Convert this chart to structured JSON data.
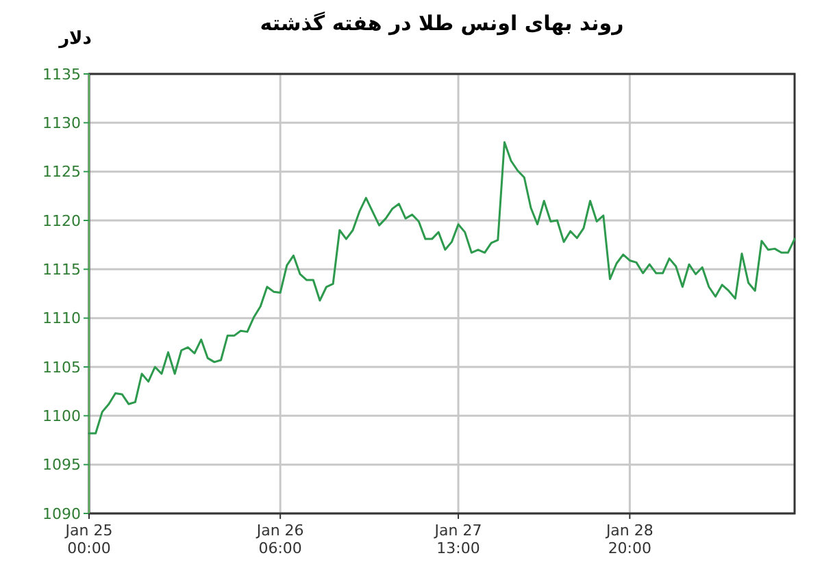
{
  "chart_data": {
    "type": "line",
    "title": "روند بهای اونس طلا در هفته گذشته",
    "ylabel": "دلار",
    "series": [
      {
        "color": "#2e9a4e",
        "values": [
          1098.2,
          1098.2,
          1100.4,
          1101.2,
          1102.3,
          1102.2,
          1101.2,
          1101.4,
          1104.3,
          1103.5,
          1105.0,
          1104.3,
          1106.5,
          1104.3,
          1106.7,
          1107.0,
          1106.4,
          1107.8,
          1105.9,
          1105.5,
          1105.7,
          1108.2,
          1108.2,
          1108.7,
          1108.6,
          1110.1,
          1111.2,
          1113.2,
          1112.7,
          1112.6,
          1115.4,
          1116.4,
          1114.5,
          1113.9,
          1113.9,
          1111.8,
          1113.2,
          1113.5,
          1119.0,
          1118.1,
          1119.0,
          1120.9,
          1122.3,
          1120.9,
          1119.5,
          1120.2,
          1121.2,
          1121.7,
          1120.2,
          1120.6,
          1119.9,
          1118.1,
          1118.1,
          1118.8,
          1117.0,
          1117.8,
          1119.6,
          1118.8,
          1116.7,
          1117.0,
          1116.7,
          1117.7,
          1118.0,
          1128.0,
          1126.1,
          1125.1,
          1124.4,
          1121.3,
          1119.6,
          1122.0,
          1119.9,
          1120.0,
          1117.8,
          1118.9,
          1118.2,
          1119.2,
          1122.0,
          1119.9,
          1120.5,
          1114.0,
          1115.6,
          1116.5,
          1115.9,
          1115.7,
          1114.6,
          1115.5,
          1114.6,
          1114.6,
          1116.1,
          1115.3,
          1113.2,
          1115.5,
          1114.5,
          1115.2,
          1113.2,
          1112.2,
          1113.4,
          1112.8,
          1112.0,
          1116.6,
          1113.6,
          1112.8,
          1117.9,
          1117.0,
          1117.1,
          1116.7,
          1116.7,
          1118.1
        ]
      }
    ],
    "categories": [
      "Jan 25\n00:00",
      null,
      null,
      null,
      null,
      null,
      null,
      null,
      null,
      null,
      null,
      null,
      null,
      null,
      null,
      null,
      null,
      null,
      null,
      null,
      null,
      null,
      null,
      null,
      null,
      null,
      null,
      null,
      null,
      "Jan 26\n06:00",
      null,
      null,
      null,
      null,
      null,
      null,
      null,
      null,
      null,
      null,
      null,
      null,
      null,
      null,
      null,
      null,
      null,
      null,
      null,
      null,
      null,
      null,
      null,
      null,
      null,
      null,
      "Jan 27\n13:00",
      null,
      null,
      null,
      null,
      null,
      null,
      null,
      null,
      null,
      null,
      null,
      null,
      null,
      null,
      null,
      null,
      null,
      null,
      null,
      null,
      null,
      null,
      null,
      null,
      null,
      "Jan 28\n20:00",
      null,
      null,
      null,
      null,
      null,
      null,
      null,
      null,
      null,
      null,
      null,
      null,
      null,
      null,
      null,
      null,
      null,
      null,
      null,
      null,
      null,
      null,
      null,
      null,
      null
    ],
    "ylim": [
      1090,
      1135
    ],
    "yticks": [
      1090,
      1095,
      1100,
      1105,
      1110,
      1115,
      1120,
      1125,
      1130,
      1135
    ],
    "grid": true,
    "marker": "none",
    "line_style": "solid"
  }
}
